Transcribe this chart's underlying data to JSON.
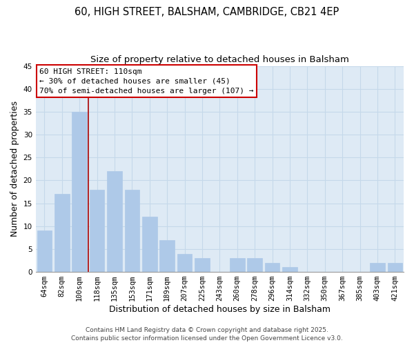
{
  "title1": "60, HIGH STREET, BALSHAM, CAMBRIDGE, CB21 4EP",
  "title2": "Size of property relative to detached houses in Balsham",
  "xlabel": "Distribution of detached houses by size in Balsham",
  "ylabel": "Number of detached properties",
  "categories": [
    "64sqm",
    "82sqm",
    "100sqm",
    "118sqm",
    "135sqm",
    "153sqm",
    "171sqm",
    "189sqm",
    "207sqm",
    "225sqm",
    "243sqm",
    "260sqm",
    "278sqm",
    "296sqm",
    "314sqm",
    "332sqm",
    "350sqm",
    "367sqm",
    "385sqm",
    "403sqm",
    "421sqm"
  ],
  "values": [
    9,
    17,
    35,
    18,
    22,
    18,
    12,
    7,
    4,
    3,
    0,
    3,
    3,
    2,
    1,
    0,
    0,
    0,
    0,
    2,
    2
  ],
  "bar_color": "#aec9e8",
  "bar_edge_color": "#aec9e8",
  "grid_color": "#c5d8ea",
  "bg_color": "#deeaf5",
  "vline_color": "#aa0000",
  "annotation_text": "60 HIGH STREET: 110sqm\n← 30% of detached houses are smaller (45)\n70% of semi-detached houses are larger (107) →",
  "annotation_box_color": "#cc0000",
  "ylim": [
    0,
    45
  ],
  "yticks": [
    0,
    5,
    10,
    15,
    20,
    25,
    30,
    35,
    40,
    45
  ],
  "footer": "Contains HM Land Registry data © Crown copyright and database right 2025.\nContains public sector information licensed under the Open Government Licence v3.0.",
  "title_fontsize": 10.5,
  "subtitle_fontsize": 9.5,
  "axis_label_fontsize": 9,
  "tick_fontsize": 7.5,
  "annotation_fontsize": 8,
  "footer_fontsize": 6.5
}
